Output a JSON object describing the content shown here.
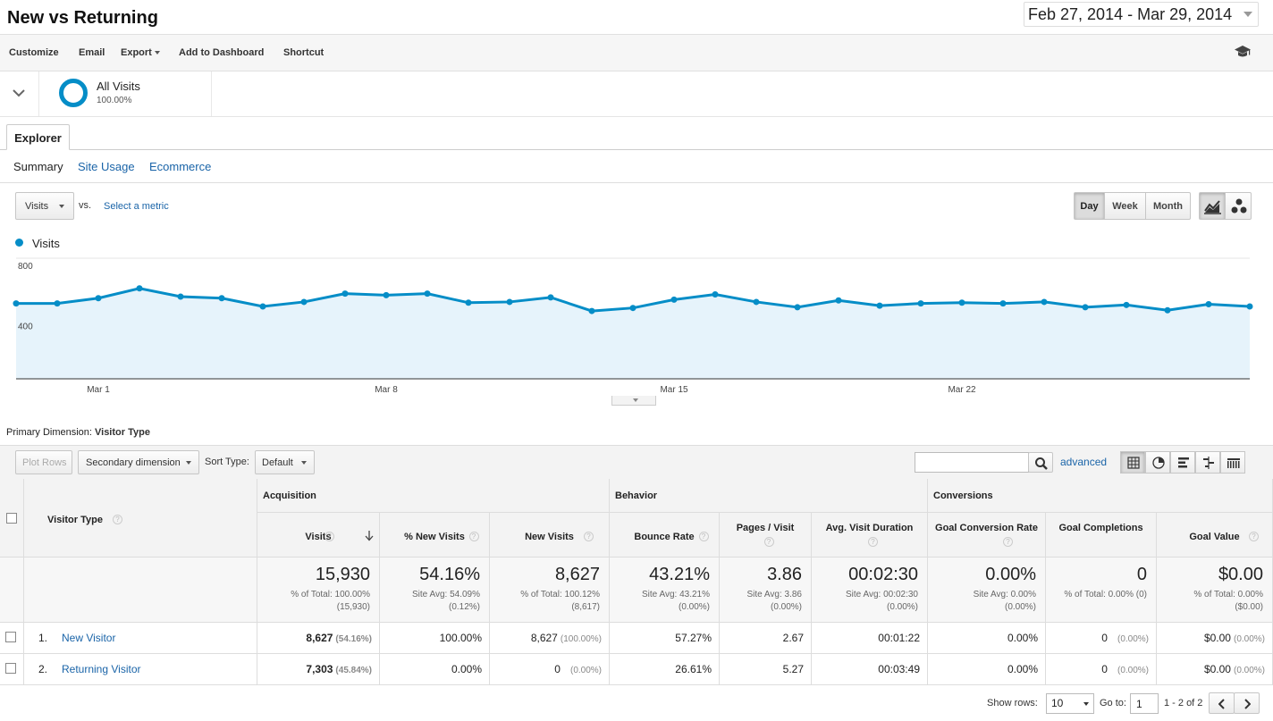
{
  "header": {
    "title": "New vs Returning",
    "date_range": "Feb 27, 2014 - Mar 29, 2014"
  },
  "toolbar": {
    "customize": "Customize",
    "email": "Email",
    "export": "Export",
    "add_to_dashboard": "Add to Dashboard",
    "shortcut": "Shortcut"
  },
  "segment": {
    "name": "All Visits",
    "percent": "100.00%"
  },
  "tabs": {
    "explorer": "Explorer",
    "summary": "Summary",
    "site_usage": "Site Usage",
    "ecommerce": "Ecommerce"
  },
  "metric": {
    "selected": "Visits",
    "vs": "vs.",
    "select_metric": "Select a metric"
  },
  "granularity": {
    "day": "Day",
    "week": "Week",
    "month": "Month",
    "active": "Day"
  },
  "chart_data": {
    "type": "area",
    "series": [
      {
        "name": "Visits",
        "color": "#058dc7",
        "values": [
          500,
          500,
          535,
          600,
          545,
          535,
          480,
          510,
          565,
          555,
          565,
          505,
          510,
          540,
          450,
          470,
          525,
          560,
          510,
          475,
          520,
          485,
          500,
          505,
          500,
          510,
          475,
          490,
          455,
          495,
          480
        ]
      }
    ],
    "x_start": "2014-02-27",
    "x_end": "2014-03-29",
    "x_tick_labels": [
      "Mar 1",
      "Mar 8",
      "Mar 15",
      "Mar 22"
    ],
    "y_tick_labels": [
      "800",
      "400"
    ],
    "ylim": [
      0,
      800
    ],
    "fill_color": "#e6f3fb"
  },
  "primary_dimension": {
    "label": "Primary Dimension:",
    "value": "Visitor Type"
  },
  "table_tools": {
    "plot_rows": "Plot Rows",
    "secondary_dimension": "Secondary dimension",
    "sort_type_label": "Sort Type:",
    "sort_type_value": "Default",
    "search_value": "",
    "advanced": "advanced"
  },
  "table": {
    "dimension_header": "Visitor Type",
    "groups": [
      {
        "name": "Acquisition"
      },
      {
        "name": "Behavior"
      },
      {
        "name": "Conversions"
      }
    ],
    "columns": [
      {
        "label": "Visits",
        "sorted": true
      },
      {
        "label": "% New Visits"
      },
      {
        "label": "New Visits"
      },
      {
        "label": "Bounce Rate"
      },
      {
        "label": "Pages / Visit"
      },
      {
        "label": "Avg. Visit Duration"
      },
      {
        "label": "Goal Conversion Rate"
      },
      {
        "label": "Goal Completions"
      },
      {
        "label": "Goal Value"
      }
    ],
    "totals": [
      {
        "value": "15,930",
        "sub1": "% of Total: 100.00%",
        "sub2": "(15,930)"
      },
      {
        "value": "54.16%",
        "sub1": "Site Avg: 54.09%",
        "sub2": "(0.12%)"
      },
      {
        "value": "8,627",
        "sub1": "% of Total: 100.12%",
        "sub2": "(8,617)"
      },
      {
        "value": "43.21%",
        "sub1": "Site Avg: 43.21%",
        "sub2": "(0.00%)"
      },
      {
        "value": "3.86",
        "sub1": "Site Avg: 3.86",
        "sub2": "(0.00%)"
      },
      {
        "value": "00:02:30",
        "sub1": "Site Avg: 00:02:30",
        "sub2": "(0.00%)"
      },
      {
        "value": "0.00%",
        "sub1": "Site Avg: 0.00%",
        "sub2": "(0.00%)"
      },
      {
        "value": "0",
        "sub1": "% of Total: 0.00% (0)",
        "sub2": ""
      },
      {
        "value": "$0.00",
        "sub1": "% of Total: 0.00%",
        "sub2": "($0.00)"
      }
    ],
    "rows": [
      {
        "index": "1.",
        "name": "New Visitor",
        "cells": [
          {
            "value": "8,627",
            "pct": "(54.16%)",
            "bold": true
          },
          {
            "value": "100.00%"
          },
          {
            "value": "8,627",
            "pct": "(100.00%)"
          },
          {
            "value": "57.27%"
          },
          {
            "value": "2.67"
          },
          {
            "value": "00:01:22"
          },
          {
            "value": "0.00%"
          },
          {
            "value": "0",
            "pct": "(0.00%)"
          },
          {
            "value": "$0.00",
            "pct": "(0.00%)"
          }
        ]
      },
      {
        "index": "2.",
        "name": "Returning Visitor",
        "cells": [
          {
            "value": "7,303",
            "pct": "(45.84%)",
            "bold": true
          },
          {
            "value": "0.00%"
          },
          {
            "value": "0",
            "pct": "(0.00%)"
          },
          {
            "value": "26.61%"
          },
          {
            "value": "5.27"
          },
          {
            "value": "00:03:49"
          },
          {
            "value": "0.00%"
          },
          {
            "value": "0",
            "pct": "(0.00%)"
          },
          {
            "value": "$0.00",
            "pct": "(0.00%)"
          }
        ]
      }
    ]
  },
  "footer": {
    "show_rows_label": "Show rows:",
    "show_rows_value": "10",
    "goto_label": "Go to:",
    "goto_value": "1",
    "page_range": "1 - 2 of 2"
  }
}
